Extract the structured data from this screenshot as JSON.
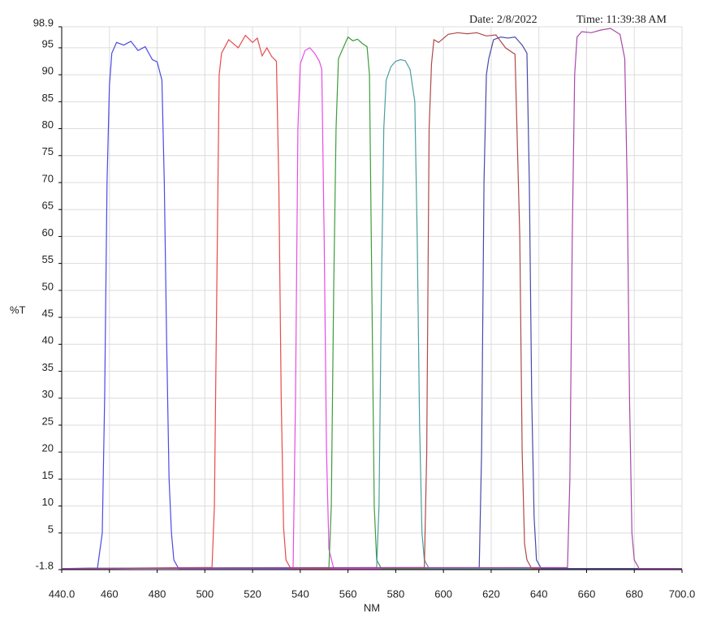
{
  "chart_data": {
    "type": "line",
    "date": "Date: 2/8/2022",
    "time": "Time: 11:39:38 AM",
    "xlabel": "NM",
    "ylabel": "%T",
    "xlim": [
      440,
      700
    ],
    "ylim": [
      -1.8,
      98.9
    ],
    "xticks": [
      {
        "value": 440,
        "label": "440.0"
      },
      460,
      480,
      500,
      520,
      540,
      560,
      580,
      600,
      620,
      640,
      660,
      680,
      {
        "value": 700,
        "label": "700.0"
      }
    ],
    "yticks": [
      -1.8,
      5,
      10,
      15,
      20,
      25,
      30,
      35,
      40,
      45,
      50,
      55,
      60,
      65,
      70,
      75,
      80,
      85,
      90,
      95,
      98.9
    ],
    "grid": true,
    "series": [
      {
        "color": "#4a4ae8",
        "x": [
          440,
          455,
          457,
          458,
          459,
          460,
          461,
          463,
          466,
          469,
          472,
          475,
          478,
          480,
          482,
          483,
          484,
          485,
          486,
          487,
          489,
          700
        ],
        "values": [
          -1.6,
          -1.5,
          5,
          30,
          70,
          88,
          94,
          96,
          95.5,
          96.2,
          94.5,
          95.2,
          92.8,
          92.4,
          89,
          70,
          40,
          15,
          5,
          0,
          -1.6,
          -1.6
        ]
      },
      {
        "color": "#e84a4a",
        "x": [
          440,
          503,
          504,
          505,
          506,
          507,
          510,
          514,
          517,
          520,
          522,
          524,
          526,
          528,
          530,
          531,
          532,
          533,
          534,
          536,
          700
        ],
        "values": [
          -1.6,
          -1.4,
          10,
          50,
          90,
          94,
          96.5,
          95,
          97.3,
          96,
          96.8,
          93.5,
          95,
          93.4,
          92.5,
          70,
          30,
          6,
          0,
          -1.6,
          -1.6
        ]
      },
      {
        "color": "#e84ae8",
        "x": [
          440,
          537,
          538,
          539,
          540,
          542,
          544,
          546,
          548,
          549,
          550,
          551,
          552,
          554,
          700
        ],
        "values": [
          -1.6,
          -1.4,
          30,
          80,
          92,
          94.5,
          95,
          94,
          92.5,
          91,
          60,
          20,
          2,
          -1.6,
          -1.6
        ]
      },
      {
        "color": "#3c9c3c",
        "x": [
          440,
          552,
          553,
          554,
          555,
          556,
          558,
          560,
          562,
          564,
          566,
          568,
          569,
          570,
          571,
          572,
          574,
          700
        ],
        "values": [
          -1.6,
          -1.4,
          10,
          50,
          80,
          93,
          95,
          97,
          96.3,
          96.6,
          95.8,
          95.2,
          90,
          50,
          10,
          0,
          -1.6,
          -1.6
        ]
      },
      {
        "color": "#4a9e9e",
        "x": [
          440,
          572,
          573,
          574,
          575,
          576,
          578,
          580,
          582,
          584,
          586,
          588,
          589,
          590,
          591,
          592,
          594,
          700
        ],
        "values": [
          -1.6,
          -1.4,
          10,
          50,
          80,
          89,
          91.5,
          92.5,
          92.8,
          92.6,
          91,
          85,
          60,
          25,
          5,
          0,
          -1.6,
          -1.6
        ]
      },
      {
        "color": "#b04848",
        "x": [
          440,
          592,
          593,
          594,
          595,
          596,
          598,
          602,
          606,
          610,
          614,
          618,
          622,
          626,
          630,
          632,
          633,
          634,
          635,
          637,
          700
        ],
        "values": [
          -1.6,
          -1.4,
          20,
          80,
          92,
          96.5,
          96,
          97.5,
          97.8,
          97.6,
          97.8,
          97.2,
          97.4,
          95,
          93.8,
          60,
          20,
          3,
          0,
          -1.6,
          -1.6
        ]
      },
      {
        "color": "#4848a8",
        "x": [
          440,
          615,
          616,
          617,
          618,
          619,
          621,
          624,
          627,
          630,
          633,
          635,
          636,
          637,
          638,
          639,
          641,
          700
        ],
        "values": [
          -1.6,
          -1.4,
          20,
          70,
          90,
          93,
          96.5,
          97,
          96.8,
          97,
          95.5,
          94,
          70,
          30,
          8,
          0,
          -1.6,
          -1.6
        ]
      },
      {
        "color": "#a848a8",
        "x": [
          440,
          652,
          653,
          654,
          655,
          656,
          658,
          662,
          666,
          670,
          674,
          676,
          677,
          678,
          679,
          680,
          682,
          700
        ],
        "values": [
          -1.6,
          -1.4,
          15,
          60,
          90,
          97,
          98,
          97.8,
          98.3,
          98.6,
          97.5,
          93,
          70,
          30,
          5,
          0,
          -1.6,
          -1.6
        ]
      }
    ]
  }
}
